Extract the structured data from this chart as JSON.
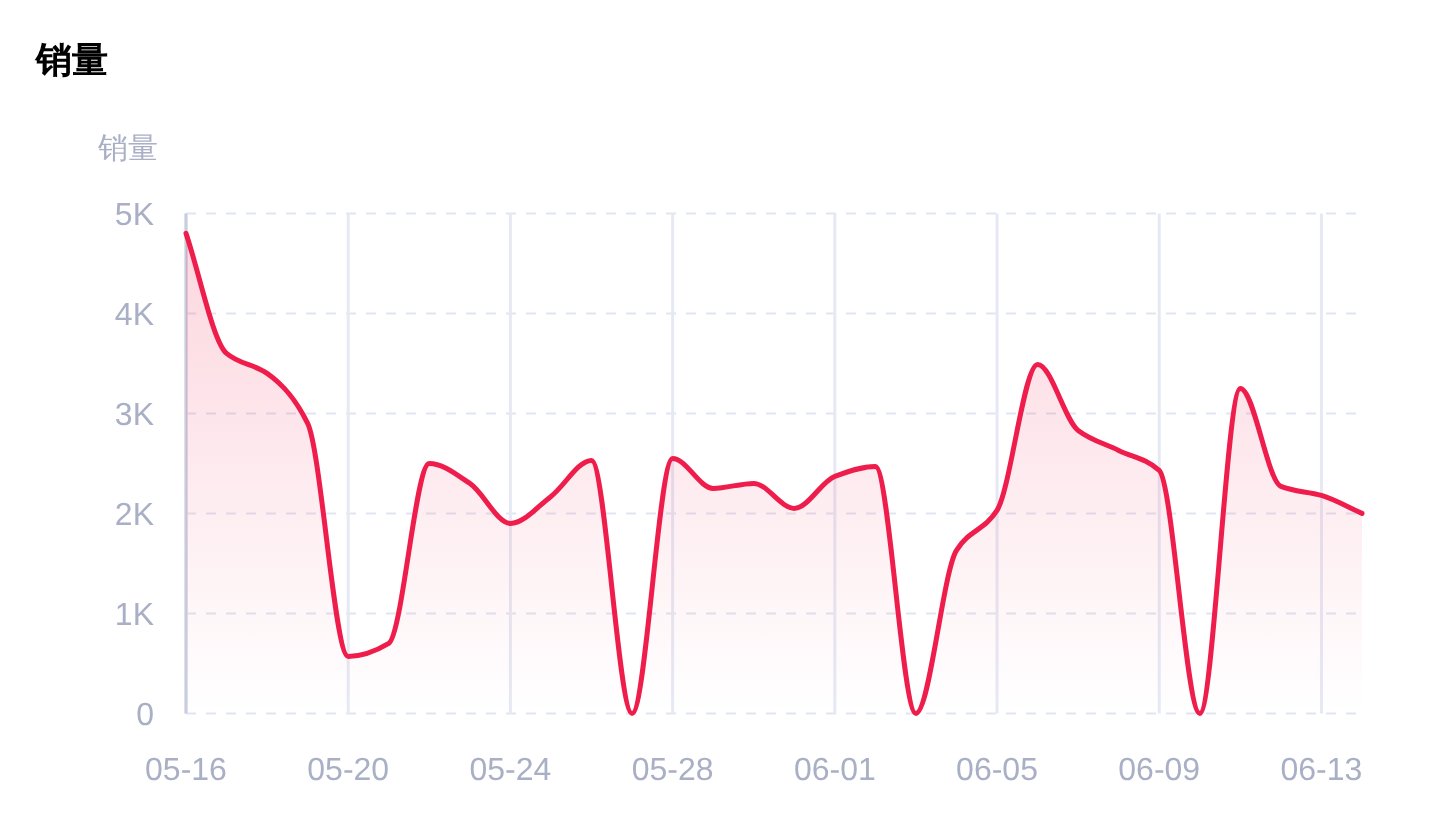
{
  "chart_data": {
    "type": "area",
    "title": "销量",
    "ylabel": "销量",
    "categories": [
      "05-16",
      null,
      null,
      null,
      "05-20",
      null,
      null,
      null,
      "05-24",
      null,
      null,
      null,
      "05-28",
      null,
      null,
      null,
      "06-01",
      null,
      null,
      null,
      "06-05",
      null,
      null,
      null,
      "06-09",
      null,
      null,
      null,
      "06-13",
      null
    ],
    "series": [
      {
        "color": "#ee1d4b",
        "values": [
          4800,
          3600,
          3400,
          2900,
          570,
          700,
          2500,
          2300,
          1900,
          2170,
          2530,
          0,
          2550,
          2250,
          2300,
          2050,
          2370,
          2470,
          0,
          1630,
          2030,
          3490,
          2830,
          2630,
          2430,
          0,
          3250,
          2270,
          2180,
          2000
        ]
      }
    ],
    "ylim": [
      0,
      5000
    ],
    "yticks": [
      0,
      {
        "value": 1000,
        "label": "1K"
      },
      {
        "value": 2000,
        "label": "2K"
      },
      {
        "value": 3000,
        "label": "3K"
      },
      {
        "value": 4000,
        "label": "4K"
      },
      {
        "value": 5000,
        "label": "5K"
      }
    ],
    "grid": true,
    "marker": "none",
    "line_style": "solid"
  }
}
